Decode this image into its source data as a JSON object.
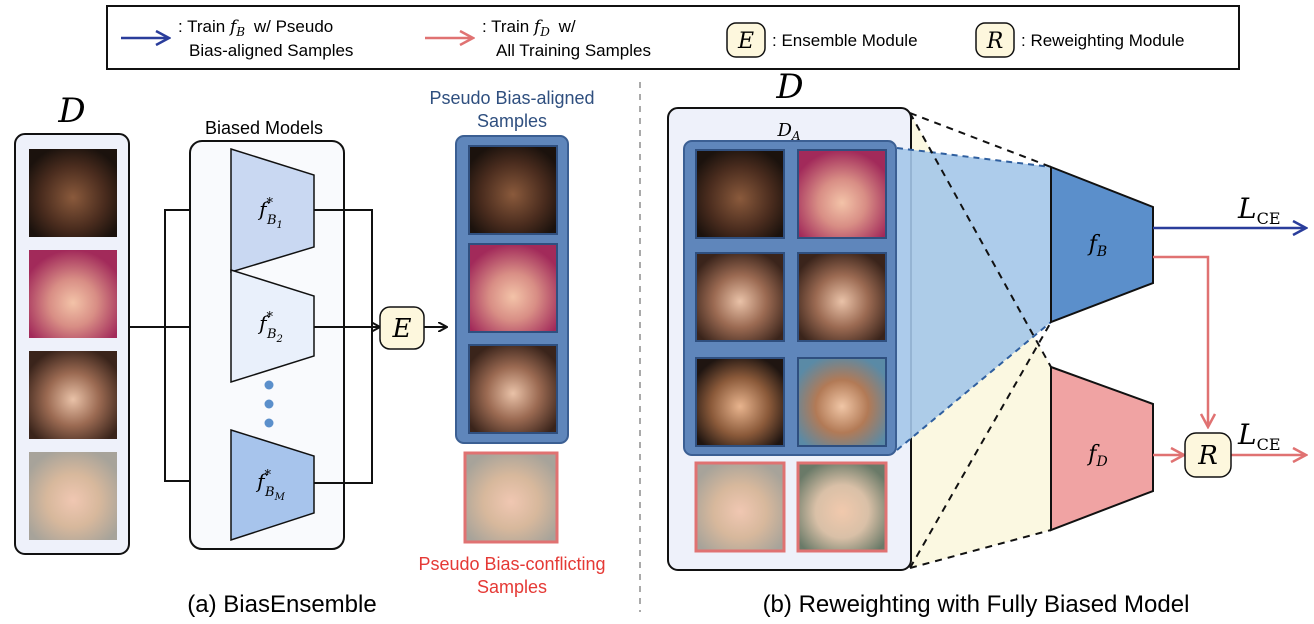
{
  "legend": {
    "item_blue": {
      "line1": ": Train",
      "symbol": "f",
      "subscript": "B",
      "line1_tail": "w/ Pseudo",
      "line2": "Bias-aligned Samples",
      "color": "#2a3d9b"
    },
    "item_red": {
      "line1": ": Train",
      "symbol": "f",
      "subscript": "D",
      "line1_tail": "w/",
      "line2": "All Training Samples",
      "color": "#e07272"
    },
    "item_ensemble": {
      "symbol": "E",
      "label": ": Ensemble Module"
    },
    "item_reweight": {
      "symbol": "R",
      "label": ": Reweighting Module"
    }
  },
  "panel_a": {
    "dataset_symbol": "D",
    "biased_models_title": "Biased Models",
    "models": [
      {
        "base": "f",
        "sup": "*",
        "sub": "B",
        "subsub": "1",
        "fill": "#c9d8f2"
      },
      {
        "base": "f",
        "sup": "*",
        "sub": "B",
        "subsub": "2",
        "fill": "#e9f0fb"
      },
      {
        "base": "f",
        "sup": "*",
        "sub": "B",
        "subsub": "M",
        "fill": "#a7c4ec"
      }
    ],
    "ensemble_symbol": "E",
    "aligned_title_line1": "Pseudo Bias-aligned",
    "aligned_title_line2": "Samples",
    "conflicting_title_line1": "Pseudo Bias-conflicting",
    "conflicting_title_line2": "Samples",
    "caption": "(a) BiasEnsemble"
  },
  "panel_b": {
    "dataset_symbol": "D",
    "subset_symbol": "D",
    "subset_sub": "A",
    "model_b": {
      "base": "f",
      "sub": "B",
      "fill": "#5b8fcb"
    },
    "model_d": {
      "base": "f",
      "sub": "D",
      "fill": "#f0a3a3"
    },
    "loss_symbol": "L",
    "loss_sub": "CE",
    "reweight_symbol": "R",
    "caption": "(b) Reweighting with Fully Biased Model"
  },
  "colors": {
    "blue_arrow": "#2a3d9b",
    "red_arrow": "#e07272",
    "aligned_box": "#5f86bb",
    "aligned_title": "#2f4f7f",
    "conflicting_title": "#e53935",
    "module_fill": "#fdf7dd",
    "panel_fill": "#eef1fa",
    "cone_fill": "#fbf8e1",
    "projection_fill": "#a4c6e9"
  }
}
